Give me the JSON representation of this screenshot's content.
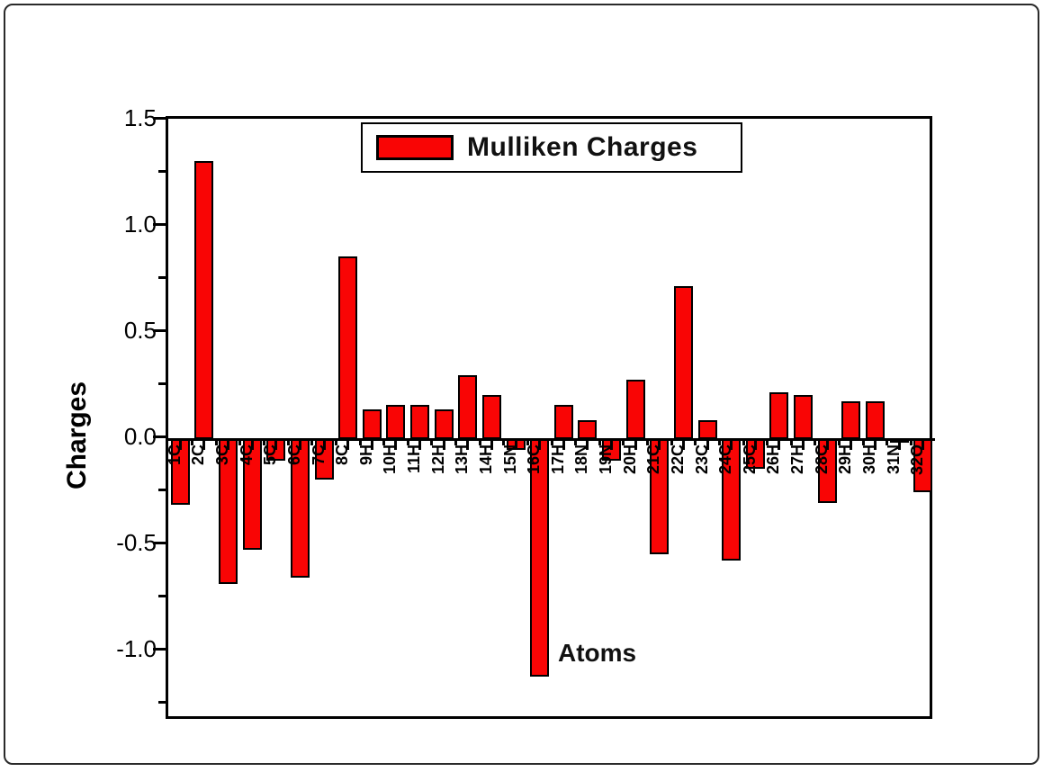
{
  "chart_data": {
    "type": "bar",
    "series_name": "Mulliken Charges",
    "ylabel": "Charges",
    "xlabel": "Atoms",
    "categories": [
      "1C",
      "2C",
      "3C",
      "4C",
      "5C",
      "6C",
      "7C",
      "8C",
      "9H",
      "10H",
      "11H",
      "12H",
      "13H",
      "14H",
      "15N",
      "16C",
      "17H",
      "18N",
      "19N",
      "20H",
      "21C",
      "22C",
      "23C",
      "24C",
      "25C",
      "26H",
      "27H",
      "28C",
      "29H",
      "30H",
      "31N",
      "32O"
    ],
    "values": [
      -0.31,
      1.31,
      -0.68,
      -0.52,
      -0.1,
      -0.65,
      -0.19,
      0.86,
      0.14,
      0.16,
      0.16,
      0.14,
      0.3,
      0.21,
      -0.05,
      -1.12,
      0.16,
      0.09,
      -0.1,
      0.28,
      -0.54,
      0.72,
      0.09,
      -0.57,
      -0.14,
      0.22,
      0.21,
      -0.3,
      0.18,
      0.18,
      -0.01,
      -0.25
    ],
    "ylim": [
      -1.33,
      1.51
    ],
    "yticks": [
      {
        "value": 1.5,
        "label": "1.5"
      },
      {
        "value": 1.0,
        "label": "1.0"
      },
      {
        "value": 0.5,
        "label": "0.5"
      },
      {
        "value": 0.0,
        "label": "0.0"
      },
      {
        "value": -0.5,
        "label": "-0.5"
      },
      {
        "value": -1.0,
        "label": "-1.0"
      }
    ],
    "yticks_minor": [
      1.25,
      0.75,
      0.25,
      -0.25,
      -0.75,
      -1.25
    ],
    "legend_position": "top-center",
    "grid": false,
    "colors": {
      "bar_fill": "#F90505",
      "bar_border": "#000000",
      "axis": "#000000",
      "background": "#FFFFFF"
    }
  }
}
